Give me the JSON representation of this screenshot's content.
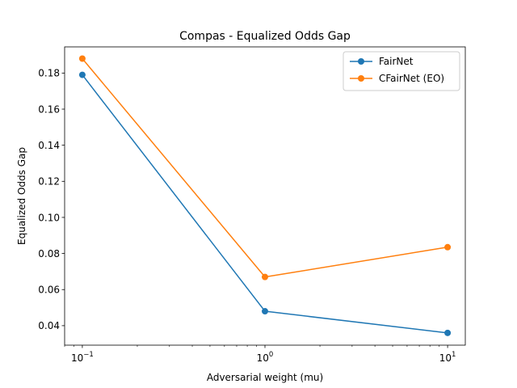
{
  "chart_data": {
    "type": "line",
    "title": "Compas - Equalized Odds Gap",
    "xlabel": "Adversarial weight (mu)",
    "ylabel": "Equalized Odds Gap",
    "xscale": "log",
    "xlim": [
      0.08,
      12.5
    ],
    "ylim": [
      0.0292,
      0.1945
    ],
    "x": [
      0.1,
      1,
      10
    ],
    "x_tick_labels": [
      {
        "value": 0.1,
        "base": "10",
        "exp": "−1"
      },
      {
        "value": 1,
        "base": "10",
        "exp": "0"
      },
      {
        "value": 10,
        "base": "10",
        "exp": "1"
      }
    ],
    "y_ticks": [
      0.04,
      0.06,
      0.08,
      0.1,
      0.12,
      0.14,
      0.16,
      0.18
    ],
    "y_tick_labels": [
      "0.04",
      "0.06",
      "0.08",
      "0.10",
      "0.12",
      "0.14",
      "0.16",
      "0.18"
    ],
    "series": [
      {
        "name": "FairNet",
        "color": "#1f77b4",
        "marker": "circle",
        "values": [
          0.179,
          0.048,
          0.036
        ]
      },
      {
        "name": "CFairNet (EO)",
        "color": "#ff7f0e",
        "marker": "circle",
        "values": [
          0.188,
          0.067,
          0.0835
        ]
      }
    ],
    "grid": false,
    "legend_position": "top-right"
  }
}
